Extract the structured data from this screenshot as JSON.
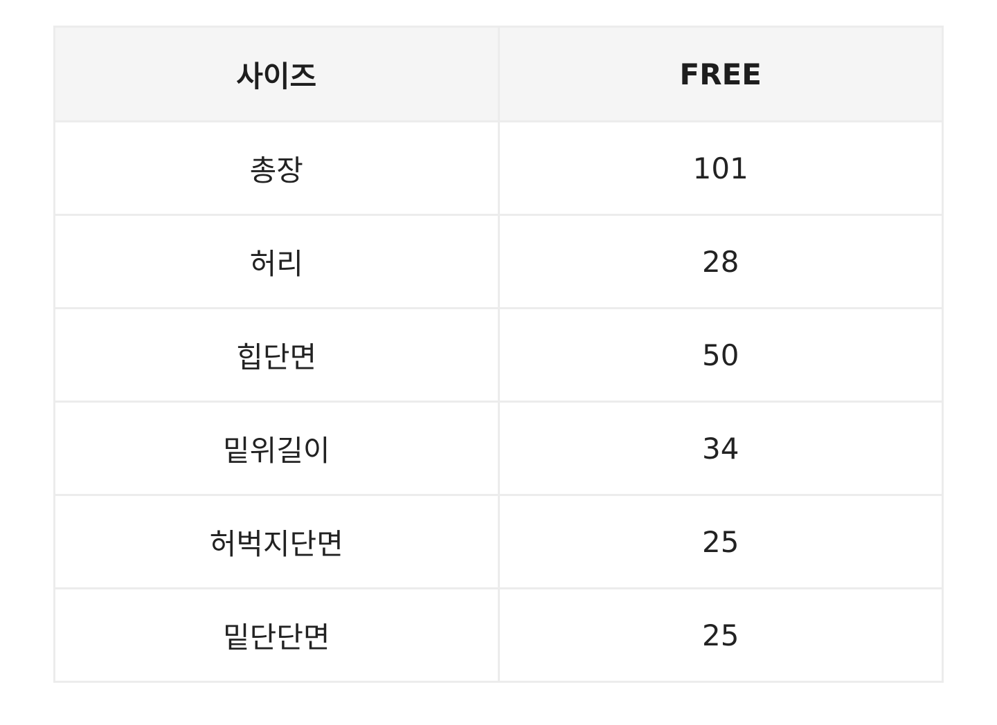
{
  "table": {
    "headers": [
      "사이즈",
      "FREE"
    ],
    "rows": [
      [
        "총장",
        "101"
      ],
      [
        "허리",
        "28"
      ],
      [
        "힙단면",
        "50"
      ],
      [
        "밑위길이",
        "34"
      ],
      [
        "허벅지단면",
        "25"
      ],
      [
        "밑단단면",
        "25"
      ]
    ]
  }
}
